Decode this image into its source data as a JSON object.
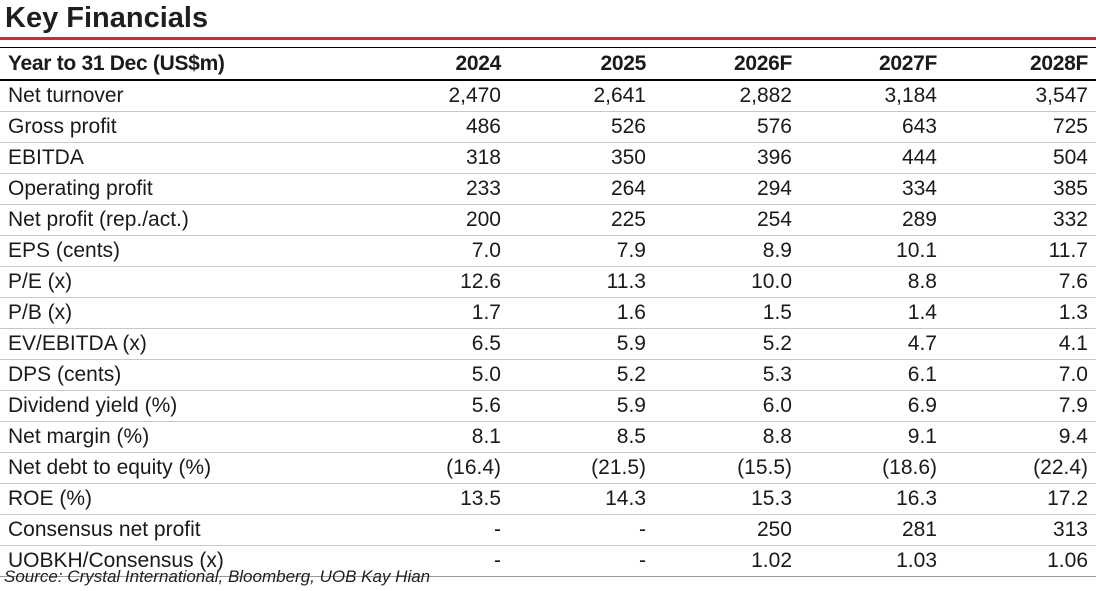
{
  "title": "Key Financials",
  "table": {
    "header": [
      "Year to 31 Dec (US$m)",
      "2024",
      "2025",
      "2026F",
      "2027F",
      "2028F"
    ],
    "rows": [
      {
        "label": "Net turnover",
        "values": [
          "2,470",
          "2,641",
          "2,882",
          "3,184",
          "3,547"
        ]
      },
      {
        "label": "Gross profit",
        "values": [
          "486",
          "526",
          "576",
          "643",
          "725"
        ]
      },
      {
        "label": "EBITDA",
        "values": [
          "318",
          "350",
          "396",
          "444",
          "504"
        ]
      },
      {
        "label": "Operating profit",
        "values": [
          "233",
          "264",
          "294",
          "334",
          "385"
        ]
      },
      {
        "label": "Net profit (rep./act.)",
        "values": [
          "200",
          "225",
          "254",
          "289",
          "332"
        ]
      },
      {
        "label": "EPS (cents)",
        "values": [
          "7.0",
          "7.9",
          "8.9",
          "10.1",
          "11.7"
        ]
      },
      {
        "label": "P/E (x)",
        "values": [
          "12.6",
          "11.3",
          "10.0",
          "8.8",
          "7.6"
        ]
      },
      {
        "label": "P/B (x)",
        "values": [
          "1.7",
          "1.6",
          "1.5",
          "1.4",
          "1.3"
        ]
      },
      {
        "label": "EV/EBITDA (x)",
        "values": [
          "6.5",
          "5.9",
          "5.2",
          "4.7",
          "4.1"
        ]
      },
      {
        "label": "DPS (cents)",
        "values": [
          "5.0",
          "5.2",
          "5.3",
          "6.1",
          "7.0"
        ]
      },
      {
        "label": "Dividend yield (%)",
        "values": [
          "5.6",
          "5.9",
          "6.0",
          "6.9",
          "7.9"
        ]
      },
      {
        "label": "Net margin (%)",
        "values": [
          "8.1",
          "8.5",
          "8.8",
          "9.1",
          "9.4"
        ]
      },
      {
        "label": "Net debt to equity (%)",
        "values": [
          "(16.4)",
          "(21.5)",
          "(15.5)",
          "(18.6)",
          "(22.4)"
        ]
      },
      {
        "label": "ROE (%)",
        "values": [
          "13.5",
          "14.3",
          "15.3",
          "16.3",
          "17.2"
        ]
      },
      {
        "label": "Consensus net profit",
        "values": [
          "-",
          "-",
          "250",
          "281",
          "313"
        ]
      },
      {
        "label": "UOBKH/Consensus (x)",
        "values": [
          "-",
          "-",
          "1.02",
          "1.03",
          "1.06"
        ]
      }
    ]
  },
  "source": "Source: Crystal International, Bloomberg, UOB Kay Hian",
  "colors": {
    "title_rule": "#b5363b",
    "text": "#1a1a1a"
  }
}
